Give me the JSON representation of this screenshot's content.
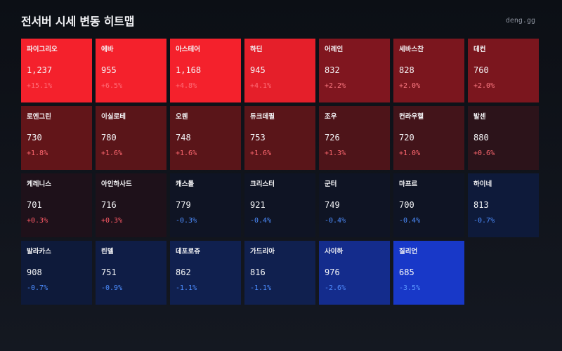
{
  "header": {
    "title": "전서버 시세 변동 히트맵",
    "brand": "deng.gg"
  },
  "tiles": [
    {
      "name": "파이그리오",
      "price": "1,237",
      "change": "+15.1%",
      "bg": "#f4212c",
      "change_color": "#ff6e78"
    },
    {
      "name": "에바",
      "price": "955",
      "change": "+6.5%",
      "bg": "#f4212c",
      "change_color": "#ff6e78"
    },
    {
      "name": "아스테어",
      "price": "1,168",
      "change": "+4.8%",
      "bg": "#f4212c",
      "change_color": "#ff6e78"
    },
    {
      "name": "하딘",
      "price": "945",
      "change": "+4.1%",
      "bg": "#e51f2a",
      "change_color": "#ff6e78"
    },
    {
      "name": "어레인",
      "price": "832",
      "change": "+2.2%",
      "bg": "#80161f",
      "change_color": "#ff7b84"
    },
    {
      "name": "세바스찬",
      "price": "828",
      "change": "+2.0%",
      "bg": "#7b161e",
      "change_color": "#ff7b84"
    },
    {
      "name": "데컨",
      "price": "760",
      "change": "+2.0%",
      "bg": "#7b161e",
      "change_color": "#ff7b84"
    },
    {
      "name": "로엔그린",
      "price": "730",
      "change": "+1.8%",
      "bg": "#621519",
      "change_color": "#ff6870"
    },
    {
      "name": "이실로테",
      "price": "780",
      "change": "+1.6%",
      "bg": "#5a1519",
      "change_color": "#ff6870"
    },
    {
      "name": "오웬",
      "price": "748",
      "change": "+1.6%",
      "bg": "#5a1519",
      "change_color": "#ff6870"
    },
    {
      "name": "듀크데필",
      "price": "753",
      "change": "+1.6%",
      "bg": "#5a1519",
      "change_color": "#ff6870"
    },
    {
      "name": "조우",
      "price": "726",
      "change": "+1.3%",
      "bg": "#4e1419",
      "change_color": "#ff6870"
    },
    {
      "name": "컨라우헬",
      "price": "720",
      "change": "+1.0%",
      "bg": "#43141a",
      "change_color": "#ff6870"
    },
    {
      "name": "발센",
      "price": "880",
      "change": "+0.6%",
      "bg": "#2c131a",
      "change_color": "#ff6870"
    },
    {
      "name": "케레니스",
      "price": "701",
      "change": "+0.3%",
      "bg": "#1e111a",
      "change_color": "#ff5a66"
    },
    {
      "name": "아인하사드",
      "price": "716",
      "change": "+0.3%",
      "bg": "#1e111a",
      "change_color": "#ff5a66"
    },
    {
      "name": "캐스톨",
      "price": "779",
      "change": "-0.3%",
      "bg": "#0f1424",
      "change_color": "#4d8dff"
    },
    {
      "name": "크리스터",
      "price": "921",
      "change": "-0.4%",
      "bg": "#0f1424",
      "change_color": "#4d8dff"
    },
    {
      "name": "군터",
      "price": "749",
      "change": "-0.4%",
      "bg": "#0f1424",
      "change_color": "#4d8dff"
    },
    {
      "name": "마프르",
      "price": "700",
      "change": "-0.4%",
      "bg": "#0f1424",
      "change_color": "#4d8dff"
    },
    {
      "name": "하이네",
      "price": "813",
      "change": "-0.7%",
      "bg": "#0e1a3a",
      "change_color": "#4d8dff"
    },
    {
      "name": "발라카스",
      "price": "908",
      "change": "-0.7%",
      "bg": "#0e1a3a",
      "change_color": "#4d8dff"
    },
    {
      "name": "린델",
      "price": "751",
      "change": "-0.9%",
      "bg": "#0f1d46",
      "change_color": "#4d8dff"
    },
    {
      "name": "데포로쥬",
      "price": "862",
      "change": "-1.1%",
      "bg": "#10204f",
      "change_color": "#4d8dff"
    },
    {
      "name": "가드리아",
      "price": "816",
      "change": "-1.1%",
      "bg": "#10204f",
      "change_color": "#4d8dff"
    },
    {
      "name": "사이하",
      "price": "976",
      "change": "-2.6%",
      "bg": "#142c8c",
      "change_color": "#4f8cff"
    },
    {
      "name": "질리언",
      "price": "685",
      "change": "-3.5%",
      "bg": "#1838c8",
      "change_color": "#5a96ff"
    }
  ]
}
